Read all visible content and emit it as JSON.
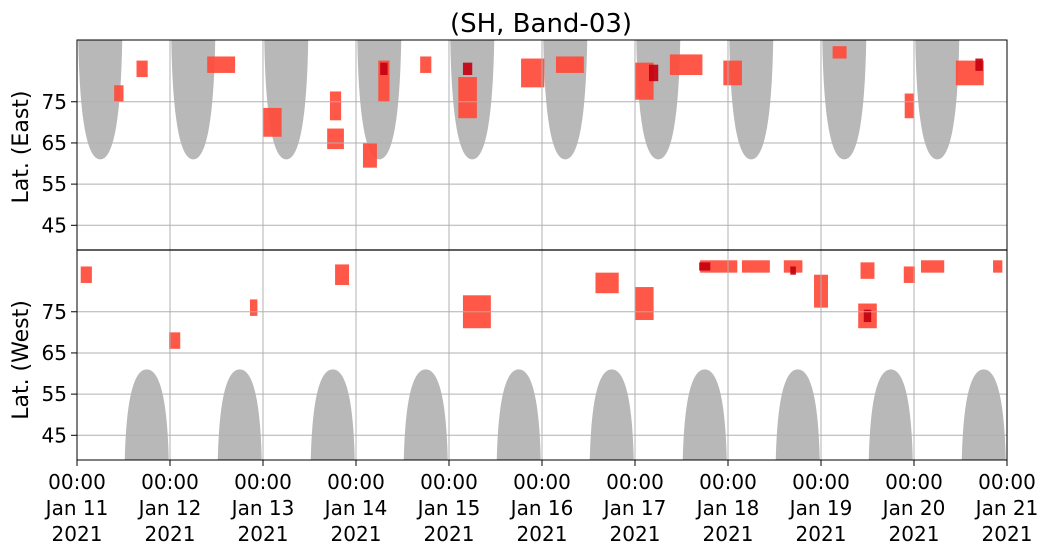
{
  "chart_data": {
    "type": "heatmap",
    "title": "(SH, Band-03)",
    "ylabel_top": "Lat. (East)",
    "ylabel_bottom": "Lat. (West)",
    "xlim": [
      "2021-01-11 00:00",
      "2021-01-21 00:00"
    ],
    "x_ticks": [
      {
        "time": "00:00",
        "date": "Jan 11",
        "year": "2021"
      },
      {
        "time": "00:00",
        "date": "Jan 12",
        "year": "2021"
      },
      {
        "time": "00:00",
        "date": "Jan 13",
        "year": "2021"
      },
      {
        "time": "00:00",
        "date": "Jan 14",
        "year": "2021"
      },
      {
        "time": "00:00",
        "date": "Jan 15",
        "year": "2021"
      },
      {
        "time": "00:00",
        "date": "Jan 16",
        "year": "2021"
      },
      {
        "time": "00:00",
        "date": "Jan 17",
        "year": "2021"
      },
      {
        "time": "00:00",
        "date": "Jan 18",
        "year": "2021"
      },
      {
        "time": "00:00",
        "date": "Jan 19",
        "year": "2021"
      },
      {
        "time": "00:00",
        "date": "Jan 20",
        "year": "2021"
      },
      {
        "time": "00:00",
        "date": "Jan 21",
        "year": "2021"
      }
    ],
    "y_ticks_east": [
      "45",
      "55",
      "65",
      "75"
    ],
    "y_ticks_west": [
      "75",
      "65",
      "55",
      "45"
    ],
    "ylim_lat": [
      39,
      90
    ],
    "grid": true,
    "colors": {
      "activity": "#ff4a3a",
      "activity_strong": "#c40010",
      "daylight": "#b8b8b8",
      "grid": "#b0b0b0"
    },
    "east_daylight_days": [
      0.25,
      1.25,
      2.25,
      3.25,
      4.25,
      5.25,
      6.25,
      7.25,
      8.25,
      9.25
    ],
    "west_daylight_days": [
      0.75,
      1.75,
      2.75,
      3.75,
      4.75,
      5.75,
      6.75,
      7.75,
      8.75,
      9.75
    ],
    "activity_blobs": [
      {
        "t": 0.1,
        "lat": 84,
        "dt": 0.12,
        "dlat": 4,
        "side": "west"
      },
      {
        "t": 0.45,
        "lat": 77,
        "dt": 0.1,
        "dlat": 4,
        "side": "east"
      },
      {
        "t": 0.7,
        "lat": 83,
        "dt": 0.12,
        "dlat": 4,
        "side": "east"
      },
      {
        "t": 1.05,
        "lat": 68,
        "dt": 0.12,
        "dlat": 4,
        "side": "west"
      },
      {
        "t": 1.55,
        "lat": 84,
        "dt": 0.3,
        "dlat": 4,
        "side": "east"
      },
      {
        "t": 1.9,
        "lat": 76,
        "dt": 0.08,
        "dlat": 4,
        "side": "west"
      },
      {
        "t": 2.1,
        "lat": 70,
        "dt": 0.2,
        "dlat": 7,
        "side": "east"
      },
      {
        "t": 2.78,
        "lat": 66,
        "dt": 0.18,
        "dlat": 5,
        "side": "east"
      },
      {
        "t": 2.78,
        "lat": 74,
        "dt": 0.12,
        "dlat": 7,
        "side": "east"
      },
      {
        "t": 2.85,
        "lat": 84,
        "dt": 0.15,
        "dlat": 5,
        "side": "west"
      },
      {
        "t": 3.3,
        "lat": 80,
        "dt": 0.12,
        "dlat": 10,
        "side": "east"
      },
      {
        "t": 3.15,
        "lat": 62,
        "dt": 0.15,
        "dlat": 6,
        "side": "east"
      },
      {
        "t": 3.75,
        "lat": 84,
        "dt": 0.12,
        "dlat": 4,
        "side": "east"
      },
      {
        "t": 4.2,
        "lat": 76,
        "dt": 0.2,
        "dlat": 10,
        "side": "east"
      },
      {
        "t": 4.3,
        "lat": 75,
        "dt": 0.3,
        "dlat": 8,
        "side": "west"
      },
      {
        "t": 4.9,
        "lat": 82,
        "dt": 0.25,
        "dlat": 7,
        "side": "east"
      },
      {
        "t": 5.3,
        "lat": 84,
        "dt": 0.3,
        "dlat": 4,
        "side": "east"
      },
      {
        "t": 5.7,
        "lat": 82,
        "dt": 0.25,
        "dlat": 5,
        "side": "west"
      },
      {
        "t": 6.1,
        "lat": 80,
        "dt": 0.2,
        "dlat": 9,
        "side": "east"
      },
      {
        "t": 6.1,
        "lat": 77,
        "dt": 0.2,
        "dlat": 8,
        "side": "west"
      },
      {
        "t": 6.55,
        "lat": 84,
        "dt": 0.35,
        "dlat": 5,
        "side": "east"
      },
      {
        "t": 6.9,
        "lat": 86,
        "dt": 0.4,
        "dlat": 3,
        "side": "west"
      },
      {
        "t": 7.05,
        "lat": 82,
        "dt": 0.2,
        "dlat": 6,
        "side": "east"
      },
      {
        "t": 7.3,
        "lat": 86,
        "dt": 0.3,
        "dlat": 3,
        "side": "west"
      },
      {
        "t": 7.7,
        "lat": 86,
        "dt": 0.2,
        "dlat": 3,
        "side": "west"
      },
      {
        "t": 8.0,
        "lat": 80,
        "dt": 0.15,
        "dlat": 8,
        "side": "west"
      },
      {
        "t": 8.2,
        "lat": 87,
        "dt": 0.15,
        "dlat": 3,
        "side": "east"
      },
      {
        "t": 8.5,
        "lat": 74,
        "dt": 0.2,
        "dlat": 6,
        "side": "west"
      },
      {
        "t": 8.5,
        "lat": 85,
        "dt": 0.15,
        "dlat": 4,
        "side": "west"
      },
      {
        "t": 8.95,
        "lat": 84,
        "dt": 0.12,
        "dlat": 4,
        "side": "west"
      },
      {
        "t": 8.95,
        "lat": 74,
        "dt": 0.1,
        "dlat": 6,
        "side": "east"
      },
      {
        "t": 9.2,
        "lat": 86,
        "dt": 0.25,
        "dlat": 3,
        "side": "west"
      },
      {
        "t": 9.6,
        "lat": 82,
        "dt": 0.3,
        "dlat": 6,
        "side": "east"
      },
      {
        "t": 9.9,
        "lat": 86,
        "dt": 0.1,
        "dlat": 3,
        "side": "west"
      }
    ],
    "strong_blobs": [
      {
        "t": 3.3,
        "lat": 83,
        "dt": 0.08,
        "dlat": 3,
        "side": "east"
      },
      {
        "t": 4.2,
        "lat": 83,
        "dt": 0.1,
        "dlat": 3,
        "side": "east"
      },
      {
        "t": 6.2,
        "lat": 82,
        "dt": 0.1,
        "dlat": 4,
        "side": "east"
      },
      {
        "t": 6.75,
        "lat": 86,
        "dt": 0.12,
        "dlat": 2,
        "side": "west"
      },
      {
        "t": 7.7,
        "lat": 85,
        "dt": 0.06,
        "dlat": 2,
        "side": "west"
      },
      {
        "t": 8.5,
        "lat": 74,
        "dt": 0.08,
        "dlat": 3,
        "side": "west"
      },
      {
        "t": 9.7,
        "lat": 84,
        "dt": 0.08,
        "dlat": 3,
        "side": "east"
      }
    ]
  }
}
